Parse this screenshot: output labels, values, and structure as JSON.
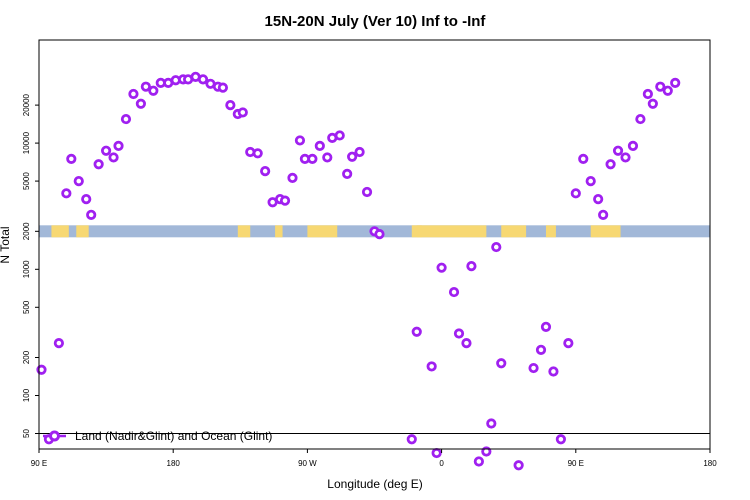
{
  "chart_data": {
    "type": "scatter",
    "title": "15N-20N July (Ver 10)   Inf to -Inf",
    "xlabel": "Longitude (deg E)",
    "ylabel": "N Total",
    "x_range": [
      -90,
      180
    ],
    "x_ticks": [
      {
        "value": -90,
        "label": "90 E"
      },
      {
        "value": -36,
        "label": "180"
      },
      {
        "value": 18,
        "label": "90 W"
      },
      {
        "value": 72,
        "label": "0"
      },
      {
        "value": 126,
        "label": "90 E"
      },
      {
        "value": 180,
        "label": "180"
      }
    ],
    "y_scale": "log",
    "y_ticks": [
      {
        "value": 50,
        "label": "50"
      },
      {
        "value": 100,
        "label": "100"
      },
      {
        "value": 200,
        "label": "200"
      },
      {
        "value": 500,
        "label": "500"
      },
      {
        "value": 1000,
        "label": "1000"
      },
      {
        "value": 2000,
        "label": "2000"
      },
      {
        "value": 5000,
        "label": "5000"
      },
      {
        "value": 10000,
        "label": "10000"
      },
      {
        "value": 20000,
        "label": "20000"
      }
    ],
    "reference_line": 50,
    "map_strip": {
      "band_value": 2000,
      "ocean_color": "#a2b8d8",
      "land_color": "#f7d873",
      "land_segments": [
        [
          -85,
          -78
        ],
        [
          -75,
          -70
        ],
        [
          -10,
          -5
        ],
        [
          5,
          8
        ],
        [
          18,
          30
        ],
        [
          60,
          64
        ],
        [
          62,
          90
        ],
        [
          96,
          106
        ],
        [
          114,
          118
        ],
        [
          132,
          144
        ]
      ]
    },
    "series": [
      {
        "name": "Land (Nadir&Glint) and Ocean (Glint)",
        "color": "#a020f0",
        "points": [
          {
            "x": -89,
            "y": 160
          },
          {
            "x": -86,
            "y": 45
          },
          {
            "x": -82,
            "y": 260
          },
          {
            "x": -79,
            "y": 4000
          },
          {
            "x": -77,
            "y": 7500
          },
          {
            "x": -74,
            "y": 5000
          },
          {
            "x": -71,
            "y": 3600
          },
          {
            "x": -69,
            "y": 2700
          },
          {
            "x": -66,
            "y": 6800
          },
          {
            "x": -63,
            "y": 8700
          },
          {
            "x": -60,
            "y": 7700
          },
          {
            "x": -58,
            "y": 9500
          },
          {
            "x": -55,
            "y": 15500
          },
          {
            "x": -52,
            "y": 24500
          },
          {
            "x": -49,
            "y": 20500
          },
          {
            "x": -47,
            "y": 28000
          },
          {
            "x": -44,
            "y": 26000
          },
          {
            "x": -41,
            "y": 30000
          },
          {
            "x": -38,
            "y": 30000
          },
          {
            "x": -35,
            "y": 31500
          },
          {
            "x": -32,
            "y": 32000
          },
          {
            "x": -30,
            "y": 32000
          },
          {
            "x": -27,
            "y": 33500
          },
          {
            "x": -24,
            "y": 32000
          },
          {
            "x": -21,
            "y": 29500
          },
          {
            "x": -18,
            "y": 28000
          },
          {
            "x": -16,
            "y": 27500
          },
          {
            "x": -13,
            "y": 20000
          },
          {
            "x": -10,
            "y": 17000
          },
          {
            "x": -8,
            "y": 17500
          },
          {
            "x": -5,
            "y": 8500
          },
          {
            "x": -2,
            "y": 8300
          },
          {
            "x": 1,
            "y": 6000
          },
          {
            "x": 4,
            "y": 3400
          },
          {
            "x": 7,
            "y": 3600
          },
          {
            "x": 9,
            "y": 3500
          },
          {
            "x": 12,
            "y": 5300
          },
          {
            "x": 15,
            "y": 10500
          },
          {
            "x": 17,
            "y": 7500
          },
          {
            "x": 20,
            "y": 7500
          },
          {
            "x": 23,
            "y": 9500
          },
          {
            "x": 26,
            "y": 7700
          },
          {
            "x": 28,
            "y": 11000
          },
          {
            "x": 31,
            "y": 11500
          },
          {
            "x": 34,
            "y": 5700
          },
          {
            "x": 36,
            "y": 7800
          },
          {
            "x": 39,
            "y": 8500
          },
          {
            "x": 42,
            "y": 4100
          },
          {
            "x": 45,
            "y": 2000
          },
          {
            "x": 47,
            "y": 1900
          },
          {
            "x": 60,
            "y": 45
          },
          {
            "x": 62,
            "y": 320
          },
          {
            "x": 68,
            "y": 170
          },
          {
            "x": 70,
            "y": 35
          },
          {
            "x": 72,
            "y": 1030
          },
          {
            "x": 77,
            "y": 660
          },
          {
            "x": 79,
            "y": 310
          },
          {
            "x": 82,
            "y": 260
          },
          {
            "x": 84,
            "y": 1060
          },
          {
            "x": 87,
            "y": 30
          },
          {
            "x": 90,
            "y": 36
          },
          {
            "x": 92,
            "y": 60
          },
          {
            "x": 94,
            "y": 1500
          },
          {
            "x": 96,
            "y": 180
          },
          {
            "x": 103,
            "y": 28
          },
          {
            "x": 109,
            "y": 165
          },
          {
            "x": 112,
            "y": 230
          },
          {
            "x": 114,
            "y": 350
          },
          {
            "x": 117,
            "y": 155
          },
          {
            "x": 120,
            "y": 45
          },
          {
            "x": 123,
            "y": 260
          },
          {
            "x": 126,
            "y": 4000
          },
          {
            "x": 129,
            "y": 7500
          },
          {
            "x": 132,
            "y": 5000
          },
          {
            "x": 135,
            "y": 3600
          },
          {
            "x": 137,
            "y": 2700
          },
          {
            "x": 140,
            "y": 6800
          },
          {
            "x": 143,
            "y": 8700
          },
          {
            "x": 146,
            "y": 7700
          },
          {
            "x": 149,
            "y": 9500
          },
          {
            "x": 152,
            "y": 15500
          },
          {
            "x": 155,
            "y": 24500
          },
          {
            "x": 157,
            "y": 20500
          },
          {
            "x": 160,
            "y": 28000
          },
          {
            "x": 163,
            "y": 26000
          },
          {
            "x": 166,
            "y": 30000
          }
        ]
      }
    ]
  }
}
